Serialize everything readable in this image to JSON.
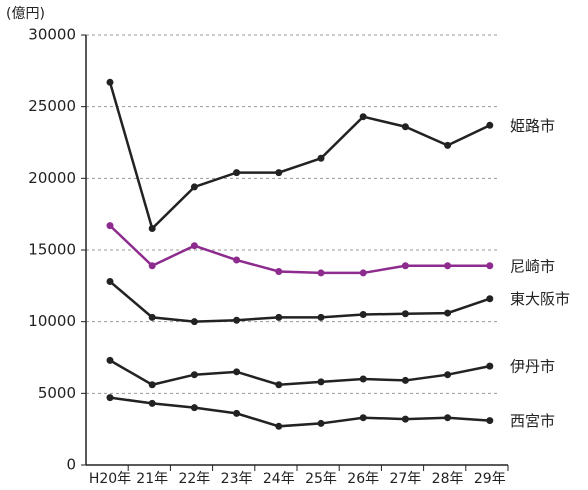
{
  "chart_data": {
    "type": "line",
    "y_axis_label": "(億円)",
    "categories": [
      "H20年",
      "21年",
      "22年",
      "23年",
      "24年",
      "25年",
      "26年",
      "27年",
      "28年",
      "29年"
    ],
    "series": [
      {
        "name": "姫路市",
        "color": "#222222",
        "values": [
          26700,
          16500,
          19400,
          20400,
          20400,
          21400,
          24300,
          23600,
          22300,
          23700
        ]
      },
      {
        "name": "尼崎市",
        "color": "#8e2b8e",
        "values": [
          16700,
          13900,
          15300,
          14300,
          13500,
          13400,
          13400,
          13900,
          13900,
          13900
        ]
      },
      {
        "name": "東大阪市",
        "color": "#222222",
        "values": [
          12800,
          10300,
          10000,
          10100,
          10300,
          10300,
          10500,
          10550,
          10600,
          11600
        ]
      },
      {
        "name": "伊丹市",
        "color": "#222222",
        "values": [
          7300,
          5600,
          6300,
          6500,
          5600,
          5800,
          6000,
          5900,
          6300,
          6900
        ]
      },
      {
        "name": "西宮市",
        "color": "#222222",
        "values": [
          4700,
          4300,
          4000,
          3600,
          2700,
          2900,
          3300,
          3200,
          3300,
          3100
        ]
      }
    ],
    "ylim": [
      0,
      30000
    ],
    "yticks": [
      0,
      5000,
      10000,
      15000,
      20000,
      25000,
      30000
    ],
    "grid": true
  }
}
